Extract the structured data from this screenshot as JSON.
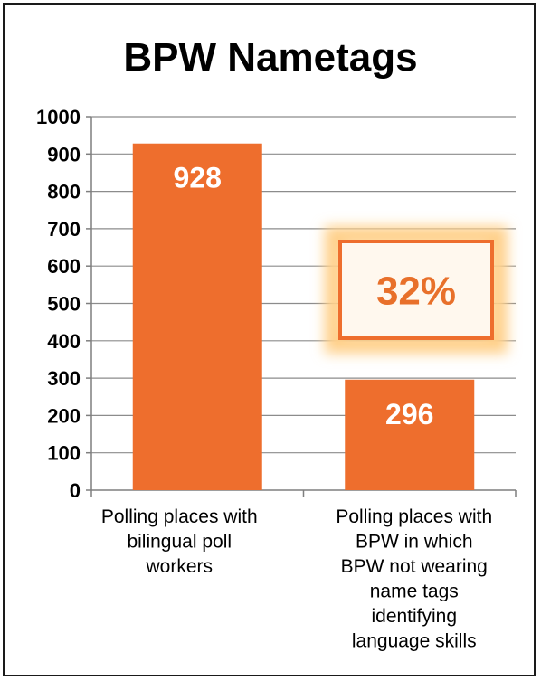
{
  "chart_data": {
    "type": "bar",
    "title": "BPW Nametags",
    "categories": [
      [
        "Polling places with",
        "bilingual poll",
        "workers"
      ],
      [
        "Polling places with",
        "BPW in which",
        "BPW not wearing",
        "name tags",
        "identifying",
        "language skills"
      ]
    ],
    "values": [
      928,
      296
    ],
    "data_labels": [
      "928",
      "296"
    ],
    "ylim": [
      0,
      1000
    ],
    "yticks": [
      0,
      100,
      200,
      300,
      400,
      500,
      600,
      700,
      800,
      900,
      1000
    ],
    "grid": true,
    "legend": "none",
    "annotation": {
      "text": "32%",
      "color": "#e8702a"
    },
    "colors": {
      "bar": "#ee6e2d",
      "grid": "#8c8c8c",
      "axis": "#7f7f7f",
      "callout_glow": "#ffd08a"
    }
  }
}
